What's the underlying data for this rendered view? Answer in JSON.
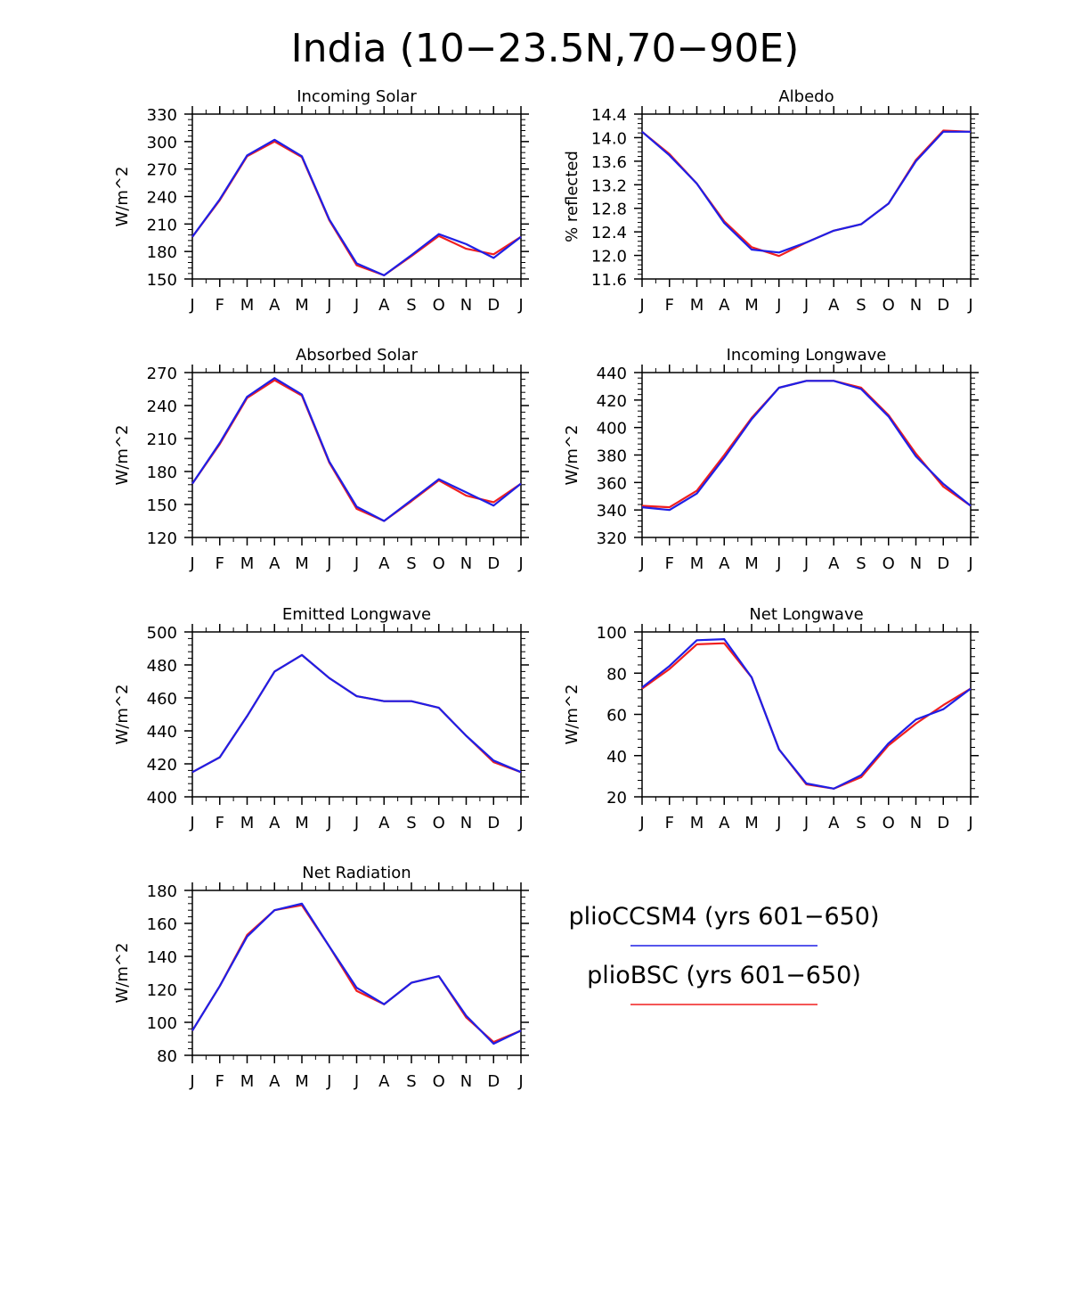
{
  "figure_title": "India (10−23.5N,70−90E)",
  "month_labels": [
    "J",
    "F",
    "M",
    "A",
    "M",
    "J",
    "J",
    "A",
    "S",
    "O",
    "N",
    "D",
    "J"
  ],
  "colors": {
    "plioCCSM4": "#1f1fe6",
    "plioBSC": "#f01f1f"
  },
  "legend": [
    {
      "label": "plioCCSM4 (yrs 601−650)",
      "color": "#1f1fe6"
    },
    {
      "label": "plioBSC (yrs 601−650)",
      "color": "#f01f1f"
    }
  ],
  "chart_data": [
    {
      "type": "line",
      "title": "Incoming Solar",
      "ylabel": "W/m^2",
      "ylim": [
        150,
        330
      ],
      "yticks": [
        150,
        180,
        210,
        240,
        270,
        300,
        330
      ],
      "tick_decimals": 0,
      "categories": [
        "J",
        "F",
        "M",
        "A",
        "M",
        "J",
        "J",
        "A",
        "S",
        "O",
        "N",
        "D",
        "J"
      ],
      "series": [
        {
          "name": "plioCCSM4 (yrs 601−650)",
          "color": "#1f1fe6",
          "values": [
            196,
            237,
            285,
            302,
            284,
            215,
            167,
            154,
            176,
            199,
            188,
            173,
            196
          ]
        },
        {
          "name": "plioBSC (yrs 601−650)",
          "color": "#f01f1f",
          "values": [
            196,
            236,
            284,
            300,
            283,
            214,
            165,
            154,
            175,
            197,
            183,
            177,
            196
          ]
        }
      ]
    },
    {
      "type": "line",
      "title": "Albedo",
      "ylabel": "% reflected",
      "ylim": [
        11.6,
        14.4
      ],
      "yticks": [
        11.6,
        12.0,
        12.4,
        12.8,
        13.2,
        13.6,
        14.0,
        14.4
      ],
      "tick_decimals": 1,
      "categories": [
        "J",
        "F",
        "M",
        "A",
        "M",
        "J",
        "J",
        "A",
        "S",
        "O",
        "N",
        "D",
        "J"
      ],
      "series": [
        {
          "name": "plioCCSM4 (yrs 601−650)",
          "color": "#1f1fe6",
          "values": [
            14.1,
            13.7,
            13.22,
            12.55,
            12.1,
            12.05,
            12.22,
            12.42,
            12.53,
            12.88,
            13.6,
            14.1,
            14.1
          ]
        },
        {
          "name": "plioBSC (yrs 601−650)",
          "color": "#f01f1f",
          "values": [
            14.1,
            13.72,
            13.22,
            12.58,
            12.14,
            11.99,
            12.22,
            12.42,
            12.53,
            12.88,
            13.62,
            14.12,
            14.1
          ]
        }
      ]
    },
    {
      "type": "line",
      "title": "Absorbed Solar",
      "ylabel": "W/m^2",
      "ylim": [
        120,
        270
      ],
      "yticks": [
        120,
        150,
        180,
        210,
        240,
        270
      ],
      "tick_decimals": 0,
      "categories": [
        "J",
        "F",
        "M",
        "A",
        "M",
        "J",
        "J",
        "A",
        "S",
        "O",
        "N",
        "D",
        "J"
      ],
      "series": [
        {
          "name": "plioCCSM4 (yrs 601−650)",
          "color": "#1f1fe6",
          "values": [
            169,
            206,
            248,
            265,
            250,
            189,
            148,
            135,
            154,
            173,
            161,
            149,
            169
          ]
        },
        {
          "name": "plioBSC (yrs 601−650)",
          "color": "#f01f1f",
          "values": [
            169,
            205,
            247,
            263,
            249,
            188,
            146,
            135,
            153,
            172,
            158,
            152,
            169
          ]
        }
      ]
    },
    {
      "type": "line",
      "title": "Incoming Longwave",
      "ylabel": "W/m^2",
      "ylim": [
        320,
        440
      ],
      "yticks": [
        320,
        340,
        360,
        380,
        400,
        420,
        440
      ],
      "tick_decimals": 0,
      "categories": [
        "J",
        "F",
        "M",
        "A",
        "M",
        "J",
        "J",
        "A",
        "S",
        "O",
        "N",
        "D",
        "J"
      ],
      "series": [
        {
          "name": "plioCCSM4 (yrs 601−650)",
          "color": "#1f1fe6",
          "values": [
            342,
            340,
            352,
            378,
            406,
            429,
            434,
            434,
            428,
            408,
            379,
            359,
            343
          ]
        },
        {
          "name": "plioBSC (yrs 601−650)",
          "color": "#f01f1f",
          "values": [
            343,
            342,
            354,
            380,
            407,
            429,
            434,
            434,
            429,
            409,
            381,
            357,
            343
          ]
        }
      ]
    },
    {
      "type": "line",
      "title": "Emitted Longwave",
      "ylabel": "W/m^2",
      "ylim": [
        400,
        500
      ],
      "yticks": [
        400,
        420,
        440,
        460,
        480,
        500
      ],
      "tick_decimals": 0,
      "categories": [
        "J",
        "F",
        "M",
        "A",
        "M",
        "J",
        "J",
        "A",
        "S",
        "O",
        "N",
        "D",
        "J"
      ],
      "series": [
        {
          "name": "plioCCSM4 (yrs 601−650)",
          "color": "#1f1fe6",
          "values": [
            415,
            424,
            449,
            476,
            486,
            472,
            461,
            458,
            458,
            454,
            437,
            422,
            415
          ]
        },
        {
          "name": "plioBSC (yrs 601−650)",
          "color": "#f01f1f",
          "values": [
            415,
            424,
            449,
            476,
            486,
            472,
            461,
            458,
            458,
            454,
            437,
            421,
            415
          ]
        }
      ]
    },
    {
      "type": "line",
      "title": "Net Longwave",
      "ylabel": "W/m^2",
      "ylim": [
        20,
        100
      ],
      "yticks": [
        20,
        40,
        60,
        80,
        100
      ],
      "tick_decimals": 0,
      "categories": [
        "J",
        "F",
        "M",
        "A",
        "M",
        "J",
        "J",
        "A",
        "S",
        "O",
        "N",
        "D",
        "J"
      ],
      "series": [
        {
          "name": "plioCCSM4 (yrs 601−650)",
          "color": "#1f1fe6",
          "values": [
            73,
            83.5,
            96,
            96.5,
            78,
            43,
            26.5,
            24,
            30.5,
            46,
            57.5,
            62.5,
            72.5
          ]
        },
        {
          "name": "plioBSC (yrs 601−650)",
          "color": "#f01f1f",
          "values": [
            72.5,
            82,
            94,
            94.5,
            78,
            43,
            26,
            24,
            29.5,
            45,
            55.5,
            64.5,
            72.5
          ]
        }
      ]
    },
    {
      "type": "line",
      "title": "Net Radiation",
      "ylabel": "W/m^2",
      "ylim": [
        80,
        180
      ],
      "yticks": [
        80,
        100,
        120,
        140,
        160,
        180
      ],
      "tick_decimals": 0,
      "categories": [
        "J",
        "F",
        "M",
        "A",
        "M",
        "J",
        "J",
        "A",
        "S",
        "O",
        "N",
        "D",
        "J"
      ],
      "series": [
        {
          "name": "plioCCSM4 (yrs 601−650)",
          "color": "#1f1fe6",
          "values": [
            95,
            122,
            152,
            168,
            172,
            146,
            121,
            111,
            124,
            128,
            104,
            87,
            95
          ]
        },
        {
          "name": "plioBSC (yrs 601−650)",
          "color": "#f01f1f",
          "values": [
            95,
            122,
            153,
            168,
            171,
            146,
            119,
            111,
            124,
            128,
            103,
            88,
            95
          ]
        }
      ]
    }
  ]
}
